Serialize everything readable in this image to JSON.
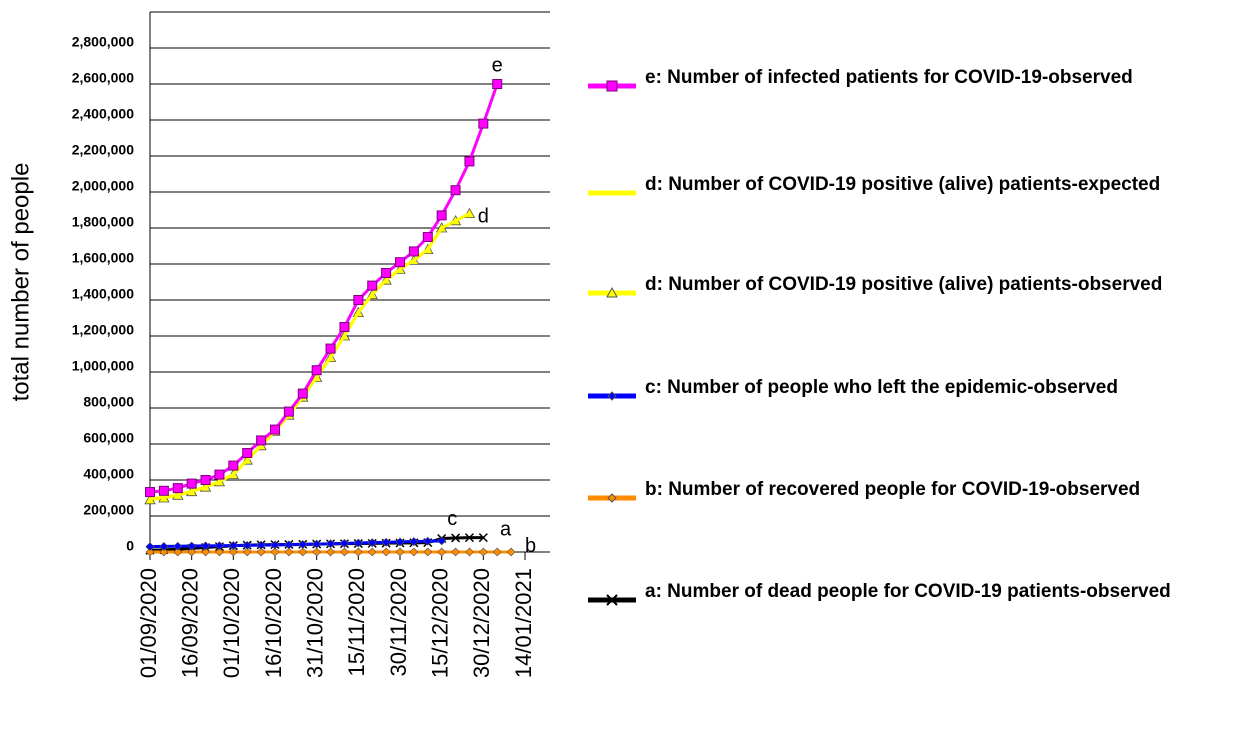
{
  "chart_data": {
    "type": "line",
    "ylabel": "total number of people",
    "x": [
      "01/09/2020",
      "06/09/2020",
      "11/09/2020",
      "16/09/2020",
      "21/09/2020",
      "26/09/2020",
      "01/10/2020",
      "06/10/2020",
      "11/10/2020",
      "16/10/2020",
      "21/10/2020",
      "26/10/2020",
      "31/10/2020",
      "05/11/2020",
      "10/11/2020",
      "15/11/2020",
      "20/11/2020",
      "25/11/2020",
      "30/11/2020",
      "05/12/2020",
      "10/12/2020",
      "15/12/2020",
      "20/12/2020",
      "25/12/2020",
      "30/12/2020",
      "04/01/2021",
      "09/01/2021"
    ],
    "xlim": [
      "01/09/2020",
      "23/01/2021"
    ],
    "xticks": [
      "01/09/2020",
      "16/09/2020",
      "01/10/2020",
      "16/10/2020",
      "31/10/2020",
      "15/11/2020",
      "30/11/2020",
      "15/12/2020",
      "30/12/2020",
      "14/01/2021"
    ],
    "ylim": [
      0,
      3000000
    ],
    "yticks": [
      0,
      {
        "value": 200000,
        "label": "200,000"
      },
      {
        "value": 400000,
        "label": "400,000"
      },
      {
        "value": 600000,
        "label": "600,000"
      },
      {
        "value": 800000,
        "label": "800,000"
      },
      {
        "value": 1000000,
        "label": "1,000,000"
      },
      {
        "value": 1200000,
        "label": "1,200,000"
      },
      {
        "value": 1400000,
        "label": "1,400,000"
      },
      {
        "value": 1600000,
        "label": "1,600,000"
      },
      {
        "value": 1800000,
        "label": "1,800,000"
      },
      {
        "value": 2000000,
        "label": "2,000,000"
      },
      {
        "value": 2200000,
        "label": "2,200,000"
      },
      {
        "value": 2400000,
        "label": "2,400,000"
      },
      {
        "value": 2600000,
        "label": "2,600,000"
      },
      {
        "value": 2800000,
        "label": "2,800,000"
      }
    ],
    "grid": true,
    "series": [
      {
        "name": "e: Number of infected patients for COVID-19-observed",
        "color": "#ff00ff",
        "marker": "square",
        "values": [
          333000,
          340000,
          355000,
          380000,
          400000,
          430000,
          480000,
          550000,
          620000,
          680000,
          780000,
          880000,
          1010000,
          1130000,
          1250000,
          1400000,
          1480000,
          1550000,
          1610000,
          1670000,
          1750000,
          1870000,
          2010000,
          2170000,
          2380000,
          2600000,
          null
        ]
      },
      {
        "name": "d: Number of COVID-19 positive (alive) patients-expected",
        "color": "#ffff00",
        "marker": "none",
        "values": [
          295000,
          305000,
          318000,
          338000,
          362000,
          392000,
          432000,
          512000,
          592000,
          672000,
          762000,
          862000,
          972000,
          1082000,
          1202000,
          1332000,
          1432000,
          1512000,
          1572000,
          1622000,
          1682000,
          1800000,
          1840000,
          1880000,
          null,
          null,
          null
        ]
      },
      {
        "name": "d: Number of COVID-19 positive (alive) patients-observed",
        "color": "#ffff00",
        "marker": "triangle",
        "values": [
          290000,
          300000,
          315000,
          335000,
          360000,
          390000,
          430000,
          510000,
          590000,
          670000,
          760000,
          860000,
          970000,
          1080000,
          1200000,
          1330000,
          1430000,
          1510000,
          1570000,
          1620000,
          1680000,
          1800000,
          1840000,
          1880000,
          null,
          null,
          null
        ]
      },
      {
        "name": "c: Number of people who left the epidemic-observed",
        "color": "#0000ff",
        "marker": "diamond",
        "values": [
          30000,
          31000,
          32000,
          33000,
          34000,
          35000,
          36000,
          37000,
          38000,
          39000,
          40000,
          42000,
          44000,
          46000,
          48000,
          50000,
          52000,
          54000,
          56000,
          58000,
          60000,
          62000,
          null,
          null,
          null,
          null,
          null
        ]
      },
      {
        "name": "b: Number of recovered people for COVID-19-observed",
        "color": "#ff8c00",
        "marker": "diamond",
        "values": [
          0,
          0,
          0,
          0,
          0,
          0,
          0,
          0,
          0,
          0,
          0,
          0,
          0,
          0,
          0,
          0,
          0,
          0,
          0,
          0,
          0,
          0,
          0,
          0,
          0,
          0,
          0
        ]
      },
      {
        "name": "a: Number of dead people for COVID-19 patients-observed",
        "color": "#000000",
        "marker": "x",
        "values": [
          10000,
          12000,
          15000,
          20000,
          25000,
          30000,
          35000,
          38000,
          40000,
          41000,
          42000,
          43000,
          44000,
          45000,
          46000,
          47000,
          48000,
          49000,
          50000,
          51000,
          52000,
          75000,
          78000,
          80000,
          80000,
          null,
          null
        ]
      }
    ],
    "annotations": [
      {
        "text": "e",
        "x": "02/01/2021",
        "y": 2700000
      },
      {
        "text": "d",
        "x": "28/12/2020",
        "y": 1860000
      },
      {
        "text": "c",
        "x": "17/12/2020",
        "y": 180000
      },
      {
        "text": "a",
        "x": "05/01/2021",
        "y": 120000
      },
      {
        "text": "b",
        "x": "14/01/2021",
        "y": 30000
      }
    ]
  }
}
